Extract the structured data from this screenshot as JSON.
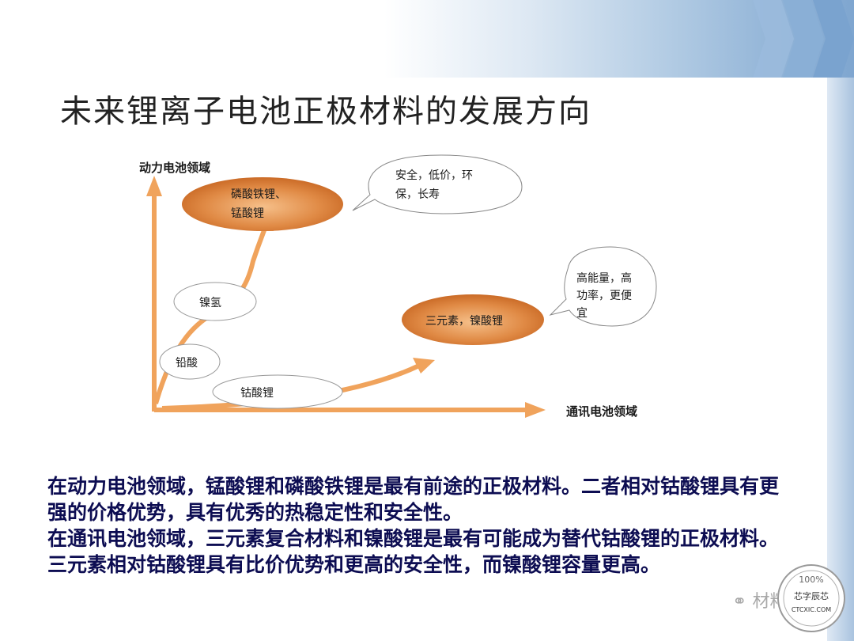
{
  "slide": {
    "title": "未来锂离子电池正极材料的发展方向",
    "paragraphs": [
      "在动力电池领域，锰酸锂和磷酸铁锂是最有前途的正极材料。二者相对钴酸锂具有更强的价格优势，具有优秀的热稳定性和安全性。",
      "在通讯电池领域，三元素复合材料和镍酸锂是最有可能成为替代钴酸锂的正极材料。三元素相对钴酸锂具有比价优势和更高的安全性，而镍酸锂容量更高。"
    ]
  },
  "diagram": {
    "y_axis_label": "动力电池领域",
    "x_axis_label": "通讯电池领域",
    "nodes": {
      "power_target": [
        "磷酸铁锂、",
        "锰酸锂"
      ],
      "comm_target": "三元素，镍酸锂",
      "nickel_hydrogen": "镍氢",
      "lead_acid": "铅酸",
      "lithium_cobalt": "钴酸锂"
    },
    "callouts": {
      "power": [
        "安全，低价，环",
        "保，长寿"
      ],
      "comm": [
        "高能量，高",
        "功率，更便",
        "宜"
      ]
    }
  },
  "watermark": {
    "text": "材料",
    "badge_top": "100%",
    "badge_mid": "芯字辰芯",
    "badge_bottom": "CTCXIC.COM"
  },
  "colors": {
    "arrow": "#f0a35c",
    "ellipse_dark": "#cf6e28",
    "ellipse_light": "#f6c08a",
    "body_text": "#0d0d52",
    "accent_blue": "#7fa6d0"
  }
}
